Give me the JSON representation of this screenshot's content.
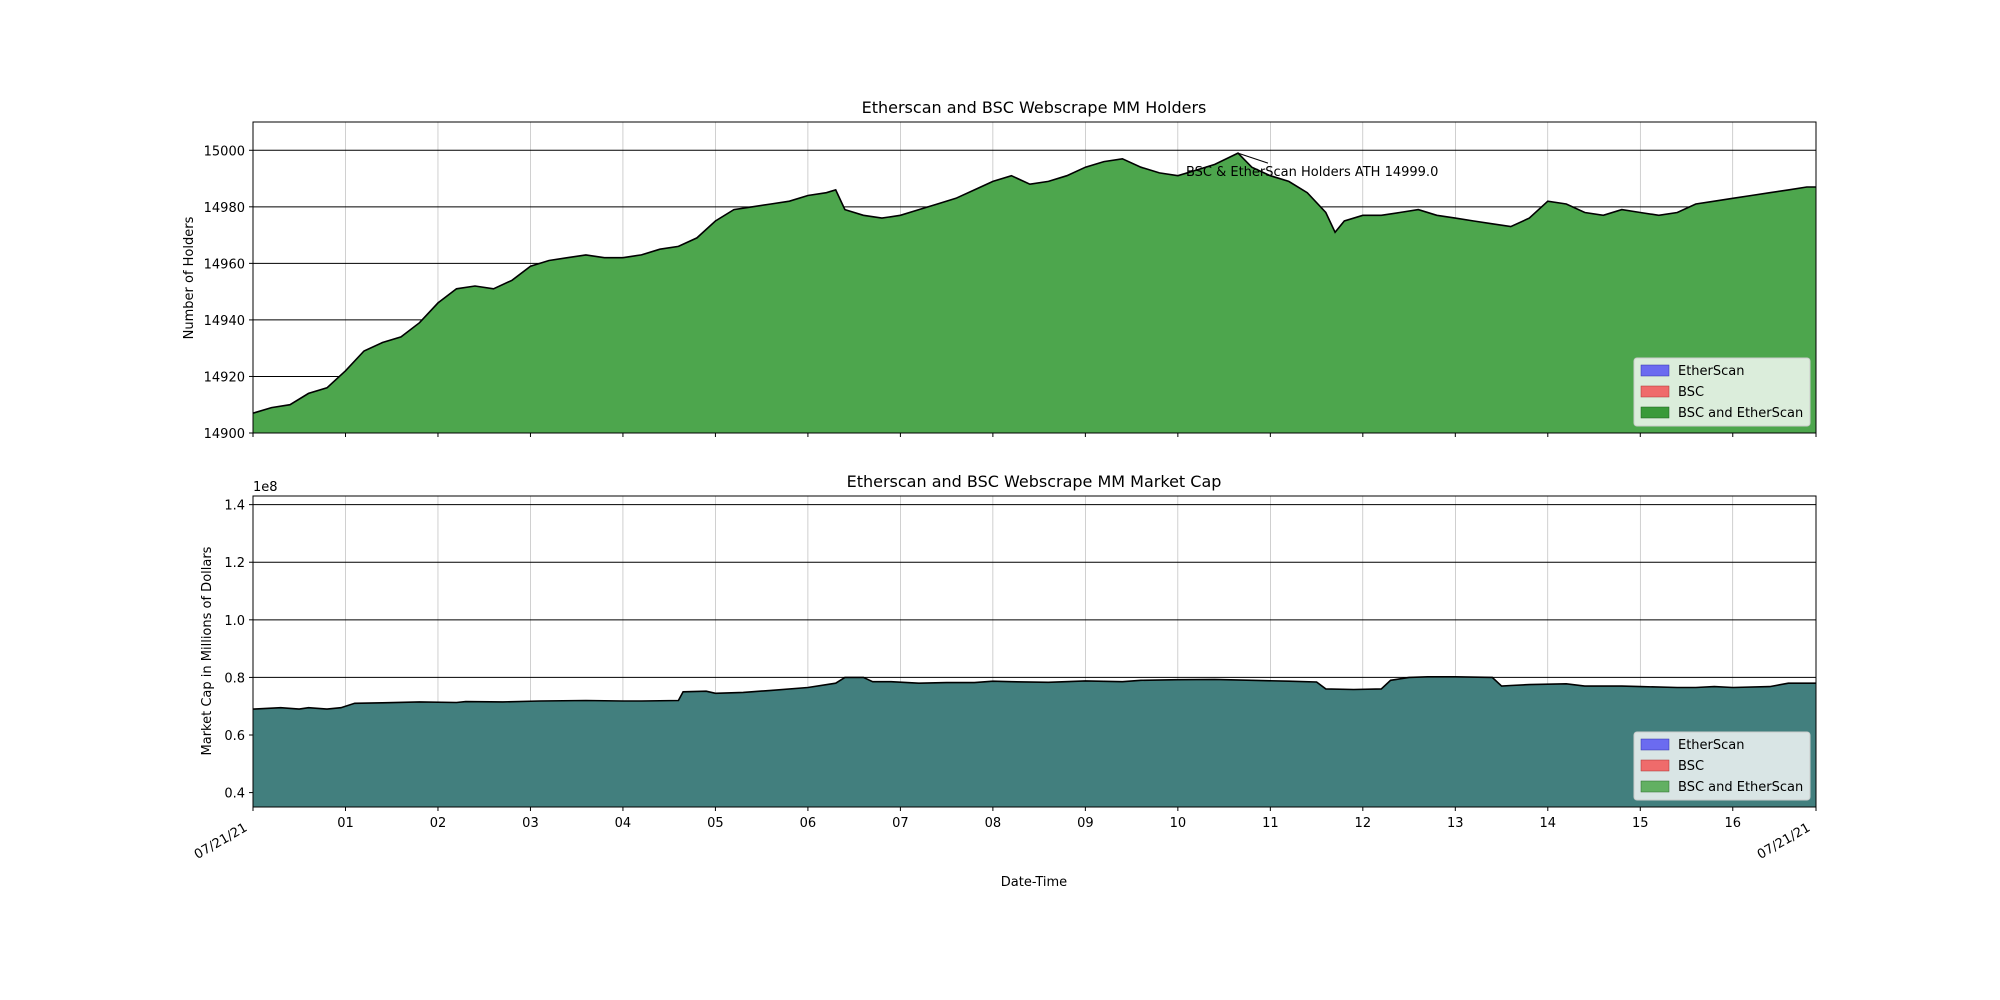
{
  "chart_data": [
    {
      "type": "area",
      "title": "Etherscan and BSC Webscrape MM Holders",
      "xlabel": "",
      "ylabel": "Number of Holders",
      "ylim": [
        14900,
        15010
      ],
      "yticks": [
        "14900",
        "14920",
        "14940",
        "14960",
        "14980",
        "15000"
      ],
      "grid": true,
      "legend_position": "lower-right",
      "legend": [
        {
          "label": "EtherScan",
          "color": "#6b6bf0"
        },
        {
          "label": "BSC",
          "color": "#ef6b6b"
        },
        {
          "label": "BSC and EtherScan",
          "color": "#3a9a3a"
        }
      ],
      "fill_color": "#4da64d",
      "line_color": "#000000",
      "annotation": {
        "text": "BSC & EtherScan Holders ATH 14999.0",
        "x": 10.65,
        "y": 14999.0
      },
      "series": [
        {
          "x": [
            0.0,
            0.2,
            0.4,
            0.6,
            0.8,
            1.0,
            1.2,
            1.4,
            1.6,
            1.8,
            2.0,
            2.2,
            2.4,
            2.6,
            2.8,
            3.0,
            3.2,
            3.4,
            3.6,
            3.8,
            4.0,
            4.2,
            4.4,
            4.6,
            4.8,
            5.0,
            5.2,
            5.4,
            5.6,
            5.8,
            6.0,
            6.2,
            6.3,
            6.4,
            6.6,
            6.8,
            7.0,
            7.2,
            7.4,
            7.6,
            7.8,
            8.0,
            8.2,
            8.4,
            8.6,
            8.8,
            9.0,
            9.2,
            9.4,
            9.6,
            9.8,
            10.0,
            10.2,
            10.4,
            10.65,
            10.8,
            11.0,
            11.2,
            11.4,
            11.6,
            11.7,
            11.8,
            12.0,
            12.2,
            12.4,
            12.6,
            12.8,
            13.0,
            13.2,
            13.4,
            13.6,
            13.8,
            14.0,
            14.2,
            14.4,
            14.6,
            14.8,
            15.0,
            15.2,
            15.4,
            15.6,
            15.8,
            16.0,
            16.2,
            16.4,
            16.6,
            16.8,
            16.9
          ],
          "values": [
            14907,
            14909,
            14910,
            14914,
            14916,
            14922,
            14929,
            14932,
            14934,
            14939,
            14946,
            14951,
            14952,
            14951,
            14954,
            14959,
            14961,
            14962,
            14963,
            14962,
            14962,
            14963,
            14965,
            14966,
            14969,
            14975,
            14979,
            14980,
            14981,
            14982,
            14984,
            14985,
            14986,
            14979,
            14977,
            14976,
            14977,
            14979,
            14981,
            14983,
            14986,
            14989,
            14991,
            14988,
            14989,
            14991,
            14994,
            14996,
            14997,
            14994,
            14992,
            14991,
            14993,
            14995,
            14999,
            14994,
            14991,
            14989,
            14985,
            14978,
            14971,
            14975,
            14977,
            14977,
            14978,
            14979,
            14977,
            14976,
            14975,
            14974,
            14973,
            14976,
            14982,
            14981,
            14978,
            14977,
            14979,
            14978,
            14977,
            14978,
            14981,
            14982,
            14983,
            14984,
            14985,
            14986,
            14987,
            14987
          ]
        }
      ]
    },
    {
      "type": "area",
      "title": "Etherscan and BSC Webscrape MM Market Cap",
      "xlabel": "Date-Time",
      "ylabel": "Market Cap in Millions of Dollars",
      "ylim": [
        0.35,
        1.43
      ],
      "yticks": [
        "0.4",
        "0.6",
        "0.8",
        "1.0",
        "1.2",
        "1.4"
      ],
      "offset_text": "1e8",
      "grid": true,
      "legend_position": "lower-right",
      "legend": [
        {
          "label": "EtherScan",
          "color": "#6b6bf0"
        },
        {
          "label": "BSC",
          "color": "#ef6b6b"
        },
        {
          "label": "BSC and EtherScan",
          "color": "#62b062"
        }
      ],
      "fill_color": "#427f7e",
      "line_color": "#000000",
      "series": [
        {
          "x": [
            0.0,
            0.3,
            0.5,
            0.6,
            0.8,
            0.95,
            1.1,
            1.4,
            1.8,
            2.2,
            2.3,
            2.7,
            3.1,
            3.6,
            4.0,
            4.2,
            4.6,
            4.65,
            4.9,
            5.0,
            5.3,
            5.6,
            6.0,
            6.3,
            6.4,
            6.6,
            6.7,
            6.9,
            7.2,
            7.5,
            7.8,
            8.0,
            8.2,
            8.6,
            9.0,
            9.4,
            9.6,
            10.0,
            10.4,
            10.8,
            11.2,
            11.5,
            11.6,
            11.9,
            12.2,
            12.3,
            12.5,
            12.7,
            13.0,
            13.4,
            13.5,
            13.6,
            13.8,
            14.2,
            14.4,
            14.8,
            15.0,
            15.4,
            15.6,
            15.8,
            16.0,
            16.4,
            16.6,
            16.9
          ],
          "values": [
            0.69,
            0.695,
            0.69,
            0.695,
            0.69,
            0.695,
            0.71,
            0.712,
            0.715,
            0.713,
            0.716,
            0.715,
            0.718,
            0.72,
            0.718,
            0.718,
            0.72,
            0.75,
            0.752,
            0.745,
            0.748,
            0.755,
            0.765,
            0.78,
            0.8,
            0.8,
            0.785,
            0.785,
            0.78,
            0.782,
            0.782,
            0.787,
            0.785,
            0.783,
            0.788,
            0.785,
            0.79,
            0.792,
            0.793,
            0.79,
            0.787,
            0.784,
            0.76,
            0.758,
            0.76,
            0.79,
            0.8,
            0.802,
            0.802,
            0.8,
            0.77,
            0.772,
            0.775,
            0.778,
            0.77,
            0.77,
            0.768,
            0.765,
            0.765,
            0.768,
            0.765,
            0.768,
            0.78,
            0.78
          ]
        }
      ]
    }
  ],
  "x_axis": {
    "min": 0,
    "max": 16.9,
    "ticks": [
      {
        "pos": 1,
        "label": "01"
      },
      {
        "pos": 2,
        "label": "02"
      },
      {
        "pos": 3,
        "label": "03"
      },
      {
        "pos": 4,
        "label": "04"
      },
      {
        "pos": 5,
        "label": "05"
      },
      {
        "pos": 6,
        "label": "06"
      },
      {
        "pos": 7,
        "label": "07"
      },
      {
        "pos": 8,
        "label": "08"
      },
      {
        "pos": 9,
        "label": "09"
      },
      {
        "pos": 10,
        "label": "10"
      },
      {
        "pos": 11,
        "label": "11"
      },
      {
        "pos": 12,
        "label": "12"
      },
      {
        "pos": 13,
        "label": "13"
      },
      {
        "pos": 14,
        "label": "14"
      },
      {
        "pos": 15,
        "label": "15"
      },
      {
        "pos": 16,
        "label": "16"
      }
    ],
    "edge_labels": [
      "07/21/21",
      "07/21/21"
    ]
  }
}
